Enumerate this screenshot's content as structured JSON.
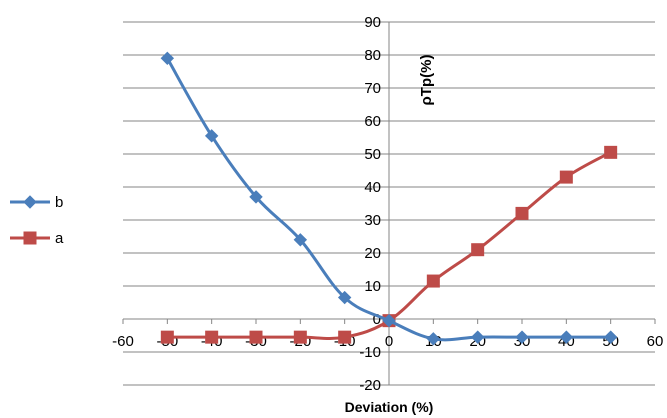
{
  "chart_data": {
    "type": "line",
    "title": "",
    "xlabel": "Deviation (%)",
    "ylabel": "ρTp(%)",
    "xlim": [
      -60,
      60
    ],
    "ylim": [
      -20,
      90
    ],
    "x_ticks": [
      "-60",
      "-50",
      "-40",
      "-30",
      "-20",
      "-10",
      "0",
      "10",
      "20",
      "30",
      "40",
      "50",
      "60"
    ],
    "y_ticks": [
      "-20",
      "-10",
      "0",
      "10",
      "20",
      "30",
      "40",
      "50",
      "60",
      "70",
      "80",
      "90"
    ],
    "grid": "horizontal",
    "legend_position": "left",
    "series": [
      {
        "name": "b",
        "color": "#4a7ebb",
        "marker": "diamond",
        "x": [
          -50,
          -40,
          -30,
          -20,
          -10,
          0,
          10,
          20,
          30,
          40,
          50
        ],
        "y": [
          79,
          55.5,
          37,
          24,
          6.5,
          -0.5,
          -6,
          -5.5,
          -5.5,
          -5.5,
          -5.5
        ]
      },
      {
        "name": "a",
        "color": "#be4b48",
        "marker": "square",
        "x": [
          -50,
          -40,
          -30,
          -20,
          -10,
          0,
          10,
          20,
          30,
          40,
          50
        ],
        "y": [
          -5.5,
          -5.5,
          -5.5,
          -5.5,
          -5.5,
          -0.5,
          11.5,
          21,
          32,
          43,
          50.5
        ]
      }
    ]
  }
}
